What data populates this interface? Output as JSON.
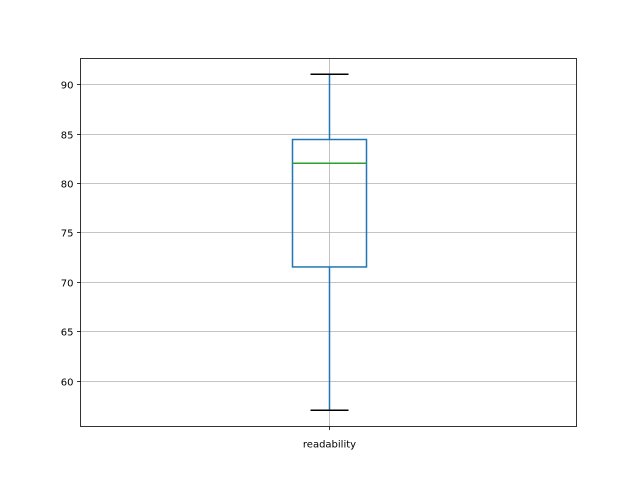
{
  "chart_data": {
    "type": "box",
    "categories": [
      "readability"
    ],
    "boxes": [
      {
        "label": "readability",
        "whisker_low": 57.0,
        "q1": 71.5,
        "median": 82.0,
        "q3": 84.4,
        "whisker_high": 91.0
      }
    ],
    "title": "",
    "xlabel": "",
    "ylabel": "",
    "ylim": [
      55.35,
      92.6
    ],
    "yticks": [
      60,
      65,
      70,
      75,
      80,
      85,
      90
    ],
    "ytick_labels": [
      "60",
      "65",
      "70",
      "75",
      "80",
      "85",
      "90"
    ],
    "grid": true,
    "colors": {
      "box": "#1f77b4",
      "median": "#2ca02c",
      "cap": "#000000",
      "grid": "#b0b0b0"
    }
  }
}
